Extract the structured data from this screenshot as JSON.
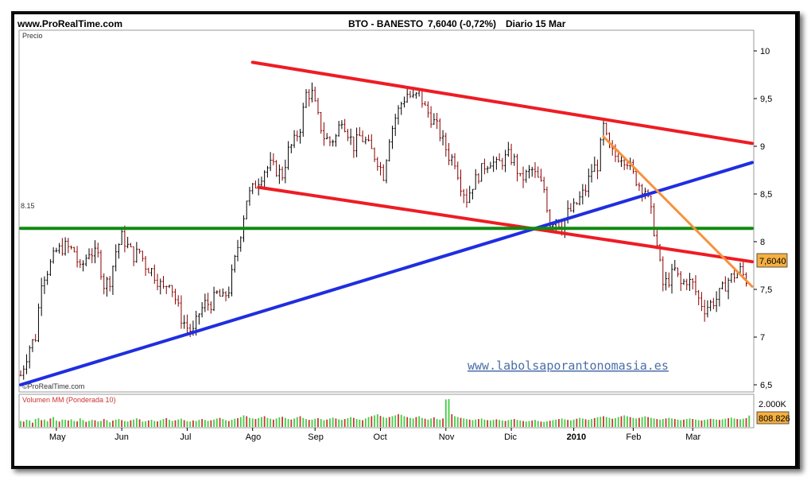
{
  "header": {
    "site": "www.ProRealTime.com",
    "instrument": "BTO - BANESTO",
    "quote": "7,6040 (-0,72%)",
    "period": "Diario 15 Mar"
  },
  "panel_price_label": "Precio",
  "copyright": "©ProRealTime.com",
  "watermark": "www.labolsaporantonomasia.es",
  "level_label": "8.15",
  "last_price_label": "7,6040",
  "volume": {
    "title": "Volumen MM (Ponderada 10)",
    "axis_label": "2.000K",
    "last_label": "808.826"
  },
  "colors": {
    "channel": "#ee1c24",
    "support": "#1f2ee0",
    "horizontal": "#118a11",
    "downtrend": "#f5923e",
    "candle_up": "#000000",
    "candle_down": "#8b0000",
    "volume_up": "#44cc44",
    "volume_down": "#cc3333"
  },
  "chart_data": {
    "type": "line",
    "title": "BTO - BANESTO",
    "y_range": [
      6.45,
      10.2
    ],
    "y_ticks": [
      "6,5",
      "7",
      "7,5",
      "8",
      "8,5",
      "9",
      "9,5",
      "10"
    ],
    "y_tick_values": [
      6.5,
      7,
      7.5,
      8,
      8.5,
      9,
      9.5,
      10
    ],
    "x_tick_labels": [
      "May",
      "Jun",
      "Jul",
      "Ago",
      "Sep",
      "Oct",
      "Nov",
      "Dic",
      "2010",
      "Feb",
      "Mar"
    ],
    "x_ticks_day_index": [
      12,
      34,
      56,
      78,
      99,
      121,
      143,
      165,
      186,
      206,
      226
    ],
    "n_days": 246,
    "series": [
      {
        "kind": "price",
        "points": [
          [
            0,
            6.6
          ],
          [
            3,
            6.9
          ],
          [
            5,
            7.0
          ],
          [
            7,
            7.6
          ],
          [
            9,
            7.7
          ],
          [
            12,
            7.9
          ],
          [
            15,
            7.95
          ],
          [
            18,
            7.9
          ],
          [
            20,
            7.7
          ],
          [
            23,
            7.9
          ],
          [
            26,
            7.85
          ],
          [
            28,
            7.55
          ],
          [
            30,
            7.6
          ],
          [
            32,
            7.9
          ],
          [
            34,
            8.05
          ],
          [
            36,
            7.95
          ],
          [
            38,
            7.85
          ],
          [
            40,
            7.9
          ],
          [
            42,
            7.75
          ],
          [
            44,
            7.7
          ],
          [
            46,
            7.6
          ],
          [
            48,
            7.5
          ],
          [
            50,
            7.6
          ],
          [
            52,
            7.4
          ],
          [
            54,
            7.2
          ],
          [
            56,
            7.1
          ],
          [
            58,
            7.05
          ],
          [
            60,
            7.25
          ],
          [
            62,
            7.35
          ],
          [
            64,
            7.35
          ],
          [
            66,
            7.45
          ],
          [
            68,
            7.4
          ],
          [
            70,
            7.5
          ],
          [
            72,
            7.8
          ],
          [
            74,
            8.1
          ],
          [
            76,
            8.45
          ],
          [
            78,
            8.55
          ],
          [
            80,
            8.65
          ],
          [
            82,
            8.75
          ],
          [
            84,
            8.8
          ],
          [
            86,
            8.75
          ],
          [
            88,
            8.7
          ],
          [
            90,
            8.95
          ],
          [
            92,
            9.05
          ],
          [
            94,
            9.2
          ],
          [
            96,
            9.55
          ],
          [
            98,
            9.55
          ],
          [
            100,
            9.3
          ],
          [
            102,
            9.1
          ],
          [
            104,
            9.05
          ],
          [
            106,
            9.1
          ],
          [
            108,
            9.3
          ],
          [
            110,
            9.15
          ],
          [
            112,
            9.0
          ],
          [
            114,
            9.1
          ],
          [
            116,
            9.05
          ],
          [
            118,
            8.95
          ],
          [
            120,
            8.85
          ],
          [
            122,
            8.7
          ],
          [
            124,
            9.1
          ],
          [
            126,
            9.3
          ],
          [
            128,
            9.45
          ],
          [
            130,
            9.55
          ],
          [
            132,
            9.5
          ],
          [
            134,
            9.55
          ],
          [
            136,
            9.4
          ],
          [
            138,
            9.3
          ],
          [
            140,
            9.2
          ],
          [
            142,
            9.05
          ],
          [
            144,
            8.9
          ],
          [
            146,
            8.85
          ],
          [
            148,
            8.6
          ],
          [
            150,
            8.45
          ],
          [
            152,
            8.6
          ],
          [
            154,
            8.7
          ],
          [
            156,
            8.8
          ],
          [
            158,
            8.85
          ],
          [
            160,
            8.8
          ],
          [
            162,
            8.85
          ],
          [
            164,
            8.9
          ],
          [
            166,
            8.85
          ],
          [
            168,
            8.65
          ],
          [
            170,
            8.7
          ],
          [
            172,
            8.75
          ],
          [
            174,
            8.65
          ],
          [
            176,
            8.55
          ],
          [
            178,
            8.2
          ],
          [
            180,
            8.25
          ],
          [
            182,
            8.15
          ],
          [
            184,
            8.3
          ],
          [
            186,
            8.35
          ],
          [
            188,
            8.45
          ],
          [
            190,
            8.55
          ],
          [
            192,
            8.75
          ],
          [
            194,
            8.8
          ],
          [
            196,
            9.2
          ],
          [
            198,
            8.95
          ],
          [
            200,
            8.9
          ],
          [
            202,
            8.9
          ],
          [
            204,
            8.85
          ],
          [
            206,
            8.7
          ],
          [
            208,
            8.6
          ],
          [
            210,
            8.55
          ],
          [
            212,
            8.3
          ],
          [
            214,
            7.95
          ],
          [
            216,
            7.55
          ],
          [
            218,
            7.6
          ],
          [
            220,
            7.7
          ],
          [
            222,
            7.55
          ],
          [
            224,
            7.6
          ],
          [
            226,
            7.55
          ],
          [
            228,
            7.4
          ],
          [
            230,
            7.3
          ],
          [
            232,
            7.35
          ],
          [
            234,
            7.4
          ],
          [
            236,
            7.5
          ],
          [
            238,
            7.6
          ],
          [
            240,
            7.65
          ],
          [
            242,
            7.7
          ],
          [
            244,
            7.6
          ]
        ]
      },
      {
        "kind": "volume",
        "values_k": [
          420,
          380,
          510,
          460,
          300,
          560,
          620,
          480,
          520,
          410,
          600,
          700,
          450,
          380,
          520,
          500,
          460,
          540,
          420,
          390,
          610,
          480,
          360,
          430,
          500,
          470,
          390,
          420,
          560,
          480,
          330,
          450,
          520,
          560,
          490,
          410,
          380,
          470,
          520,
          610,
          540,
          380,
          400,
          460,
          510,
          420,
          390,
          480,
          560,
          620,
          500,
          420,
          470,
          530,
          590,
          480,
          410,
          380,
          460,
          420,
          500,
          560,
          490,
          430,
          470,
          520,
          600,
          640,
          560,
          480,
          420,
          510,
          580,
          620,
          700,
          820,
          760,
          640,
          600,
          560,
          620,
          700,
          760,
          640,
          580,
          520,
          600,
          680,
          720,
          640,
          560,
          520,
          600,
          700,
          760,
          640,
          560,
          500,
          520,
          580,
          620,
          560,
          480,
          520,
          600,
          660,
          600,
          540,
          500,
          560,
          620,
          700,
          640,
          560,
          520,
          480,
          600,
          700,
          760,
          820,
          900,
          780,
          700,
          640,
          700,
          760,
          820,
          900,
          860,
          760,
          700,
          640,
          600,
          700,
          760,
          640,
          580,
          520,
          600,
          680,
          560,
          520,
          600,
          1950,
          1980,
          900,
          760,
          700,
          640,
          600,
          560,
          520,
          480,
          520,
          560,
          600,
          520,
          480,
          460,
          500,
          540,
          500,
          460,
          420,
          480,
          520,
          560,
          500,
          460,
          420,
          380,
          420,
          460,
          500,
          420,
          380,
          360,
          400,
          440,
          480,
          520,
          560,
          600,
          540,
          500,
          460,
          520,
          580,
          640,
          600,
          540,
          500,
          560,
          620,
          680,
          720,
          760,
          700,
          640,
          580,
          620,
          700,
          760,
          820,
          760,
          700,
          640,
          600,
          640,
          700,
          760,
          700,
          640,
          600,
          560,
          520,
          560,
          600,
          640,
          600,
          560,
          520,
          480,
          520,
          560,
          600,
          560,
          520,
          480,
          460,
          500,
          540,
          580,
          560,
          520,
          500,
          540,
          580,
          620,
          660,
          600,
          560,
          540,
          580,
          620,
          809
        ],
        "max_k": 2200
      }
    ],
    "lines": [
      {
        "name": "channel-top",
        "color": "red",
        "from": [
          78,
          9.88
        ],
        "to": [
          246,
          9.03
        ]
      },
      {
        "name": "channel-bottom",
        "color": "red",
        "from": [
          80,
          8.57
        ],
        "to": [
          246,
          7.79
        ]
      },
      {
        "name": "support",
        "color": "blue",
        "from": [
          0,
          6.5
        ],
        "to": [
          246,
          8.83
        ]
      },
      {
        "name": "resistance",
        "color": "green",
        "from": [
          0,
          8.14
        ],
        "to": [
          246,
          8.14
        ]
      },
      {
        "name": "downtrend",
        "color": "orange",
        "from": [
          196,
          9.1
        ],
        "to": [
          246,
          7.53
        ]
      }
    ]
  }
}
